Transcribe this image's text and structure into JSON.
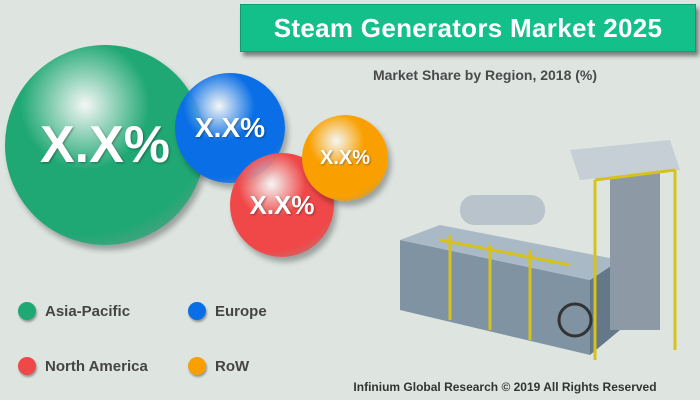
{
  "title": "Steam Generators Market 2025",
  "chart_data": {
    "type": "bubble",
    "title": "Market Share by Region, 2018 (%)",
    "series": [
      {
        "name": "Asia-Pacific",
        "label": "X.X%",
        "color": "#1fa874"
      },
      {
        "name": "Europe",
        "label": "X.X%",
        "color": "#0a6fe6"
      },
      {
        "name": "North America",
        "label": "X.X%",
        "color": "#f04848"
      },
      {
        "name": "RoW",
        "label": "X.X%",
        "color": "#f9a000"
      }
    ]
  },
  "footer": "Infinium Global Research © 2019 All Rights Reserved"
}
